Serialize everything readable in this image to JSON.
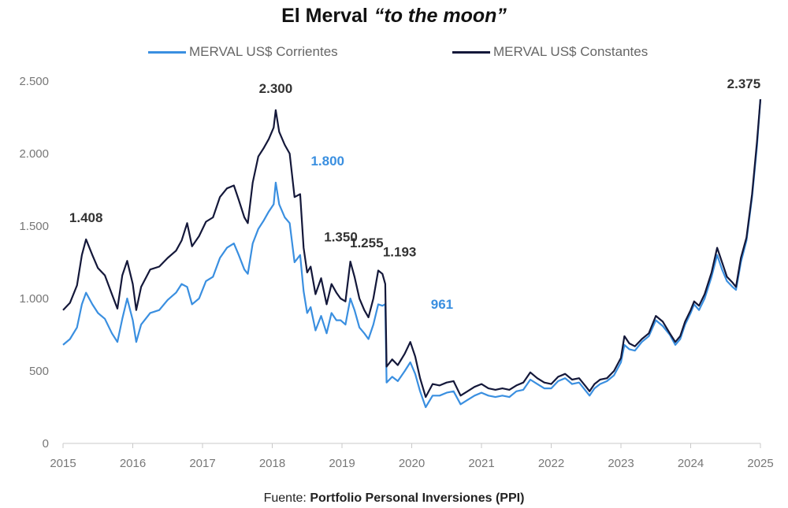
{
  "title": {
    "main": "El Merval",
    "emphasis": "“to the moon”"
  },
  "source": {
    "prefix": "Fuente:",
    "name": "Portfolio Personal Inversiones (PPI)"
  },
  "chart_data": {
    "type": "line",
    "title": "El Merval “to the moon”",
    "xlabel": "",
    "ylabel": "",
    "xlim": [
      2015,
      2025
    ],
    "ylim": [
      0,
      2500
    ],
    "x_ticks": [
      {
        "value": 2015,
        "label": "2015"
      },
      {
        "value": 2016,
        "label": "2016"
      },
      {
        "value": 2017,
        "label": "2017"
      },
      {
        "value": 2018,
        "label": "2018"
      },
      {
        "value": 2019,
        "label": "2019"
      },
      {
        "value": 2020,
        "label": "2020"
      },
      {
        "value": 2021,
        "label": "2021"
      },
      {
        "value": 2022,
        "label": "2022"
      },
      {
        "value": 2023,
        "label": "2023"
      },
      {
        "value": 2024,
        "label": "2024"
      },
      {
        "value": 2025,
        "label": "2025"
      }
    ],
    "y_ticks": [
      {
        "value": 0,
        "label": "0"
      },
      {
        "value": 500,
        "label": "500"
      },
      {
        "value": 1000,
        "label": "1.000"
      },
      {
        "value": 1500,
        "label": "1.500"
      },
      {
        "value": 2000,
        "label": "2.000"
      },
      {
        "value": 2500,
        "label": "2.500"
      }
    ],
    "grid": false,
    "legend_position": "top-center",
    "series": [
      {
        "name": "MERVAL US$ Corrientes",
        "color": "#3a8fe0",
        "points": [
          [
            2015.0,
            680
          ],
          [
            2015.1,
            720
          ],
          [
            2015.2,
            800
          ],
          [
            2015.27,
            960
          ],
          [
            2015.33,
            1040
          ],
          [
            2015.42,
            960
          ],
          [
            2015.5,
            900
          ],
          [
            2015.6,
            860
          ],
          [
            2015.7,
            760
          ],
          [
            2015.78,
            700
          ],
          [
            2015.85,
            860
          ],
          [
            2015.92,
            1000
          ],
          [
            2016.0,
            850
          ],
          [
            2016.05,
            700
          ],
          [
            2016.12,
            820
          ],
          [
            2016.25,
            900
          ],
          [
            2016.38,
            920
          ],
          [
            2016.5,
            990
          ],
          [
            2016.62,
            1040
          ],
          [
            2016.7,
            1100
          ],
          [
            2016.78,
            1080
          ],
          [
            2016.85,
            960
          ],
          [
            2016.95,
            1000
          ],
          [
            2017.05,
            1120
          ],
          [
            2017.15,
            1150
          ],
          [
            2017.25,
            1280
          ],
          [
            2017.35,
            1350
          ],
          [
            2017.45,
            1380
          ],
          [
            2017.52,
            1300
          ],
          [
            2017.6,
            1200
          ],
          [
            2017.65,
            1170
          ],
          [
            2017.72,
            1380
          ],
          [
            2017.8,
            1480
          ],
          [
            2017.88,
            1540
          ],
          [
            2017.95,
            1600
          ],
          [
            2018.02,
            1650
          ],
          [
            2018.05,
            1800
          ],
          [
            2018.1,
            1650
          ],
          [
            2018.18,
            1560
          ],
          [
            2018.25,
            1520
          ],
          [
            2018.32,
            1250
          ],
          [
            2018.4,
            1300
          ],
          [
            2018.45,
            1050
          ],
          [
            2018.5,
            900
          ],
          [
            2018.55,
            940
          ],
          [
            2018.62,
            780
          ],
          [
            2018.7,
            880
          ],
          [
            2018.78,
            760
          ],
          [
            2018.85,
            900
          ],
          [
            2018.92,
            850
          ],
          [
            2018.98,
            850
          ],
          [
            2019.05,
            820
          ],
          [
            2019.12,
            1000
          ],
          [
            2019.18,
            920
          ],
          [
            2019.25,
            800
          ],
          [
            2019.32,
            760
          ],
          [
            2019.38,
            720
          ],
          [
            2019.45,
            820
          ],
          [
            2019.52,
            960
          ],
          [
            2019.58,
            950
          ],
          [
            2019.62,
            961
          ],
          [
            2019.64,
            420
          ],
          [
            2019.72,
            460
          ],
          [
            2019.8,
            430
          ],
          [
            2019.9,
            500
          ],
          [
            2019.98,
            560
          ],
          [
            2020.05,
            480
          ],
          [
            2020.12,
            360
          ],
          [
            2020.2,
            250
          ],
          [
            2020.3,
            330
          ],
          [
            2020.4,
            330
          ],
          [
            2020.5,
            350
          ],
          [
            2020.6,
            360
          ],
          [
            2020.7,
            270
          ],
          [
            2020.8,
            300
          ],
          [
            2020.9,
            330
          ],
          [
            2021.0,
            350
          ],
          [
            2021.1,
            330
          ],
          [
            2021.2,
            320
          ],
          [
            2021.3,
            330
          ],
          [
            2021.4,
            320
          ],
          [
            2021.5,
            360
          ],
          [
            2021.6,
            370
          ],
          [
            2021.7,
            440
          ],
          [
            2021.8,
            410
          ],
          [
            2021.9,
            380
          ],
          [
            2022.0,
            380
          ],
          [
            2022.1,
            430
          ],
          [
            2022.2,
            450
          ],
          [
            2022.3,
            410
          ],
          [
            2022.4,
            420
          ],
          [
            2022.5,
            360
          ],
          [
            2022.55,
            330
          ],
          [
            2022.62,
            380
          ],
          [
            2022.7,
            410
          ],
          [
            2022.8,
            430
          ],
          [
            2022.9,
            470
          ],
          [
            2023.0,
            560
          ],
          [
            2023.05,
            680
          ],
          [
            2023.12,
            650
          ],
          [
            2023.2,
            640
          ],
          [
            2023.3,
            700
          ],
          [
            2023.4,
            740
          ],
          [
            2023.5,
            850
          ],
          [
            2023.6,
            810
          ],
          [
            2023.7,
            750
          ],
          [
            2023.78,
            680
          ],
          [
            2023.85,
            720
          ],
          [
            2023.92,
            820
          ],
          [
            2024.0,
            900
          ],
          [
            2024.05,
            960
          ],
          [
            2024.12,
            920
          ],
          [
            2024.2,
            1000
          ],
          [
            2024.3,
            1150
          ],
          [
            2024.38,
            1300
          ],
          [
            2024.45,
            1200
          ],
          [
            2024.52,
            1120
          ],
          [
            2024.6,
            1080
          ],
          [
            2024.65,
            1060
          ],
          [
            2024.72,
            1250
          ],
          [
            2024.8,
            1400
          ],
          [
            2024.88,
            1700
          ],
          [
            2024.95,
            2050
          ],
          [
            2025.0,
            2375
          ]
        ]
      },
      {
        "name": "MERVAL US$ Constantes",
        "color": "#14183a",
        "points": [
          [
            2015.0,
            920
          ],
          [
            2015.1,
            970
          ],
          [
            2015.2,
            1090
          ],
          [
            2015.27,
            1300
          ],
          [
            2015.33,
            1408
          ],
          [
            2015.42,
            1300
          ],
          [
            2015.5,
            1210
          ],
          [
            2015.6,
            1160
          ],
          [
            2015.7,
            1030
          ],
          [
            2015.78,
            930
          ],
          [
            2015.85,
            1160
          ],
          [
            2015.92,
            1260
          ],
          [
            2016.0,
            1100
          ],
          [
            2016.05,
            920
          ],
          [
            2016.12,
            1080
          ],
          [
            2016.25,
            1200
          ],
          [
            2016.38,
            1220
          ],
          [
            2016.5,
            1280
          ],
          [
            2016.62,
            1330
          ],
          [
            2016.7,
            1400
          ],
          [
            2016.78,
            1520
          ],
          [
            2016.85,
            1360
          ],
          [
            2016.95,
            1430
          ],
          [
            2017.05,
            1530
          ],
          [
            2017.15,
            1560
          ],
          [
            2017.25,
            1700
          ],
          [
            2017.35,
            1760
          ],
          [
            2017.45,
            1780
          ],
          [
            2017.52,
            1680
          ],
          [
            2017.6,
            1560
          ],
          [
            2017.65,
            1520
          ],
          [
            2017.72,
            1800
          ],
          [
            2017.8,
            1980
          ],
          [
            2017.88,
            2040
          ],
          [
            2017.95,
            2100
          ],
          [
            2018.02,
            2180
          ],
          [
            2018.05,
            2300
          ],
          [
            2018.1,
            2150
          ],
          [
            2018.18,
            2060
          ],
          [
            2018.25,
            2000
          ],
          [
            2018.32,
            1700
          ],
          [
            2018.4,
            1720
          ],
          [
            2018.45,
            1350
          ],
          [
            2018.5,
            1180
          ],
          [
            2018.55,
            1220
          ],
          [
            2018.62,
            1030
          ],
          [
            2018.7,
            1140
          ],
          [
            2018.78,
            960
          ],
          [
            2018.85,
            1100
          ],
          [
            2018.92,
            1040
          ],
          [
            2018.98,
            1000
          ],
          [
            2019.05,
            980
          ],
          [
            2019.12,
            1255
          ],
          [
            2019.18,
            1150
          ],
          [
            2019.25,
            1000
          ],
          [
            2019.32,
            920
          ],
          [
            2019.38,
            870
          ],
          [
            2019.45,
            1000
          ],
          [
            2019.52,
            1193
          ],
          [
            2019.58,
            1170
          ],
          [
            2019.62,
            1100
          ],
          [
            2019.64,
            530
          ],
          [
            2019.72,
            580
          ],
          [
            2019.8,
            540
          ],
          [
            2019.9,
            620
          ],
          [
            2019.98,
            700
          ],
          [
            2020.05,
            600
          ],
          [
            2020.12,
            450
          ],
          [
            2020.2,
            320
          ],
          [
            2020.3,
            410
          ],
          [
            2020.4,
            400
          ],
          [
            2020.5,
            420
          ],
          [
            2020.6,
            430
          ],
          [
            2020.7,
            330
          ],
          [
            2020.8,
            360
          ],
          [
            2020.9,
            390
          ],
          [
            2021.0,
            410
          ],
          [
            2021.1,
            380
          ],
          [
            2021.2,
            370
          ],
          [
            2021.3,
            380
          ],
          [
            2021.4,
            370
          ],
          [
            2021.5,
            400
          ],
          [
            2021.6,
            420
          ],
          [
            2021.7,
            490
          ],
          [
            2021.8,
            450
          ],
          [
            2021.9,
            420
          ],
          [
            2022.0,
            410
          ],
          [
            2022.1,
            460
          ],
          [
            2022.2,
            480
          ],
          [
            2022.3,
            440
          ],
          [
            2022.4,
            450
          ],
          [
            2022.5,
            390
          ],
          [
            2022.55,
            360
          ],
          [
            2022.62,
            410
          ],
          [
            2022.7,
            440
          ],
          [
            2022.8,
            450
          ],
          [
            2022.9,
            500
          ],
          [
            2023.0,
            590
          ],
          [
            2023.05,
            740
          ],
          [
            2023.12,
            690
          ],
          [
            2023.2,
            670
          ],
          [
            2023.3,
            720
          ],
          [
            2023.4,
            760
          ],
          [
            2023.5,
            880
          ],
          [
            2023.6,
            840
          ],
          [
            2023.7,
            760
          ],
          [
            2023.78,
            700
          ],
          [
            2023.85,
            740
          ],
          [
            2023.92,
            840
          ],
          [
            2024.0,
            920
          ],
          [
            2024.05,
            980
          ],
          [
            2024.12,
            950
          ],
          [
            2024.2,
            1030
          ],
          [
            2024.3,
            1180
          ],
          [
            2024.38,
            1350
          ],
          [
            2024.45,
            1250
          ],
          [
            2024.52,
            1150
          ],
          [
            2024.6,
            1110
          ],
          [
            2024.65,
            1080
          ],
          [
            2024.72,
            1280
          ],
          [
            2024.8,
            1420
          ],
          [
            2024.88,
            1720
          ],
          [
            2024.95,
            2080
          ],
          [
            2025.0,
            2375
          ]
        ]
      }
    ],
    "annotations": [
      {
        "text": "1.408",
        "x": 2015.33,
        "y": 1408,
        "series": 1,
        "color": "#333333"
      },
      {
        "text": "2.300",
        "x": 2018.05,
        "y": 2300,
        "series": 1,
        "color": "#333333"
      },
      {
        "text": "1.800",
        "x": 2018.5,
        "y": 1800,
        "series": 0,
        "color": "#3a8fe0"
      },
      {
        "text": "1.350",
        "x": 2018.78,
        "y": 1350,
        "series": 1,
        "color": "#333333"
      },
      {
        "text": "1.255",
        "x": 2019.15,
        "y": 1255,
        "series": 1,
        "color": "#333333"
      },
      {
        "text": "1.193",
        "x": 2019.6,
        "y": 1193,
        "series": 1,
        "color": "#333333"
      },
      {
        "text": "961",
        "x": 2020.05,
        "y": 961,
        "series": 0,
        "color": "#3a8fe0"
      },
      {
        "text": "2.375",
        "x": 2024.92,
        "y": 2375,
        "series": 1,
        "color": "#333333"
      }
    ]
  }
}
